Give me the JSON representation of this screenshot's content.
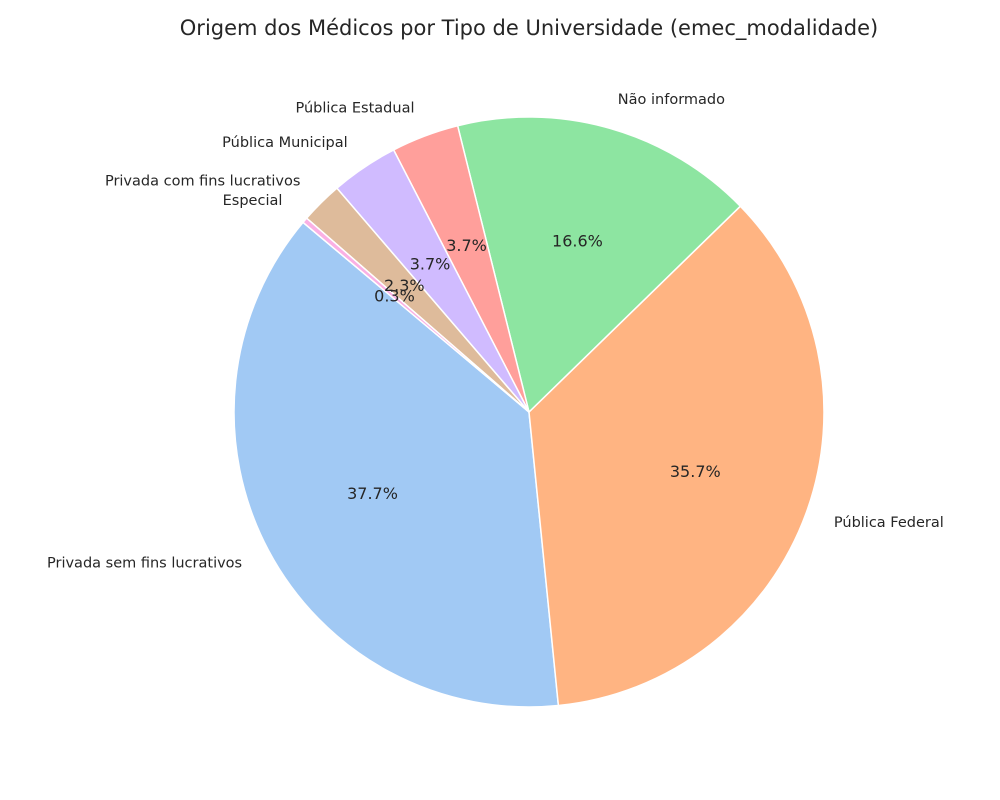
{
  "chart_data": {
    "type": "pie",
    "title": "Origem dos Médicos por Tipo de Universidade (emec_modalidade)",
    "categories": [
      "Privada sem fins lucrativos",
      "Pública Federal",
      "Não informado",
      "Pública Estadual",
      "Pública Municipal",
      "Privada com fins lucrativos",
      "Especial"
    ],
    "values": [
      37.7,
      35.7,
      16.6,
      3.7,
      3.7,
      2.3,
      0.3
    ],
    "percent_labels": [
      "37.7%",
      "35.7%",
      "16.6%",
      "3.7%",
      "3.7%",
      "2.3%",
      "0.3%"
    ],
    "colors": [
      "#a1c9f4",
      "#ffb482",
      "#8de5a1",
      "#ff9f9b",
      "#d0bbff",
      "#debb9b",
      "#fab0e4"
    ],
    "start_angle_deg": 140,
    "direction": "counterclockwise",
    "legend": "none"
  }
}
